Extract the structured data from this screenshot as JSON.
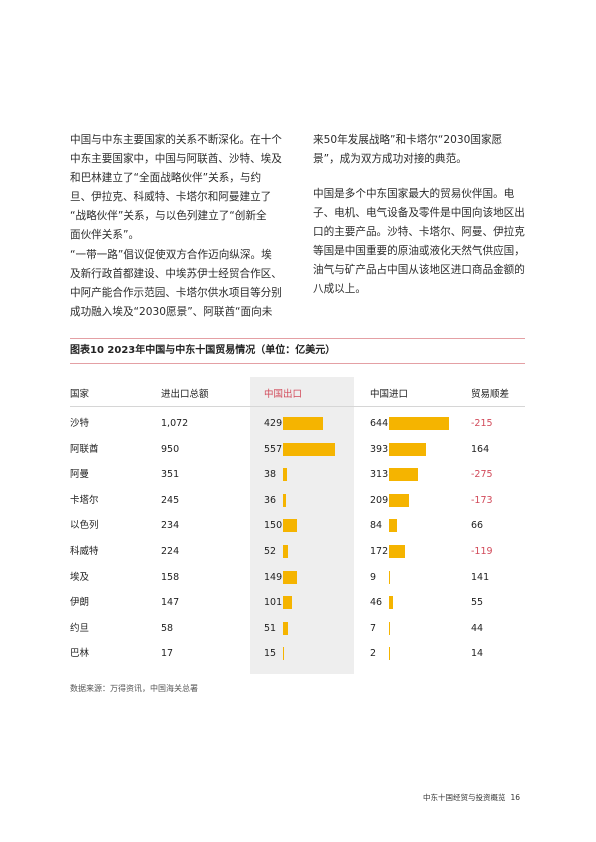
{
  "left_column": {
    "p1_lines": [
      "中国与中东主要国家的关系不断深化。在十个",
      "中东主要国家中，中国与阿联酋、沙特、埃及",
      "和巴林建立了“全面战略伙伴”关系，与约",
      "旦、伊拉克、科威特、卡塔尔和阿曼建立了",
      "“战略伙伴”关系，与以色列建立了“创新全",
      "面伙伴关系”。"
    ],
    "p2_lines": [
      "“一带一路”倡议促使双方合作迈向纵深。埃",
      "及新行政首都建设、中埃苏伊士经贸合作区、",
      "中阿产能合作示范园、卡塔尔供水项目等分别",
      "成功融入埃及“2030愿景”、阿联酋“面向未"
    ]
  },
  "right_column": {
    "p1_lines": [
      "来50年发展战略”和卡塔尔“2030国家愿",
      "景”，成为双方成功对接的典范。"
    ],
    "p2_lines": [
      "中国是多个中东国家最大的贸易伙伴国。电",
      "子、电机、电气设备及零件是中国向该地区出",
      "口的主要产品。沙特、卡塔尔、阿曼、伊拉克",
      "等国是中国重要的原油或液化天然气供应国，",
      "油气与矿产品占中国从该地区进口商品金额的",
      "八成以上。"
    ]
  },
  "chart_data": {
    "type": "table",
    "title": "图表10  2023年中国与中东十国贸易情况（单位：亿美元）",
    "columns": [
      "国家",
      "进出口总额",
      "中国出口",
      "中国进口",
      "贸易顺差"
    ],
    "highlight_column": "中国出口",
    "bar_columns": [
      "中国出口",
      "中国进口"
    ],
    "bar_color": "#f5b400",
    "negative_color": "#d24a5a",
    "rows": [
      {
        "country": "沙特",
        "total": "1,072",
        "export": 429,
        "import": 644,
        "surplus": "-215"
      },
      {
        "country": "阿联酋",
        "total": "950",
        "export": 557,
        "import": 393,
        "surplus": "164"
      },
      {
        "country": "阿曼",
        "total": "351",
        "export": 38,
        "import": 313,
        "surplus": "-275"
      },
      {
        "country": "卡塔尔",
        "total": "245",
        "export": 36,
        "import": 209,
        "surplus": "-173"
      },
      {
        "country": "以色列",
        "total": "234",
        "export": 150,
        "import": 84,
        "surplus": "66"
      },
      {
        "country": "科威特",
        "total": "224",
        "export": 52,
        "import": 172,
        "surplus": "-119"
      },
      {
        "country": "埃及",
        "total": "158",
        "export": 149,
        "import": 9,
        "surplus": "141"
      },
      {
        "country": "伊朗",
        "total": "147",
        "export": 101,
        "import": 46,
        "surplus": "55"
      },
      {
        "country": "约旦",
        "total": "58",
        "export": 51,
        "import": 7,
        "surplus": "44"
      },
      {
        "country": "巴林",
        "total": "17",
        "export": 15,
        "import": 2,
        "surplus": "14"
      }
    ],
    "source": "数据来源：万得资讯，中国海关总署"
  },
  "footer": {
    "title": "中东十国经贸与投资概览",
    "page_number": "16"
  }
}
